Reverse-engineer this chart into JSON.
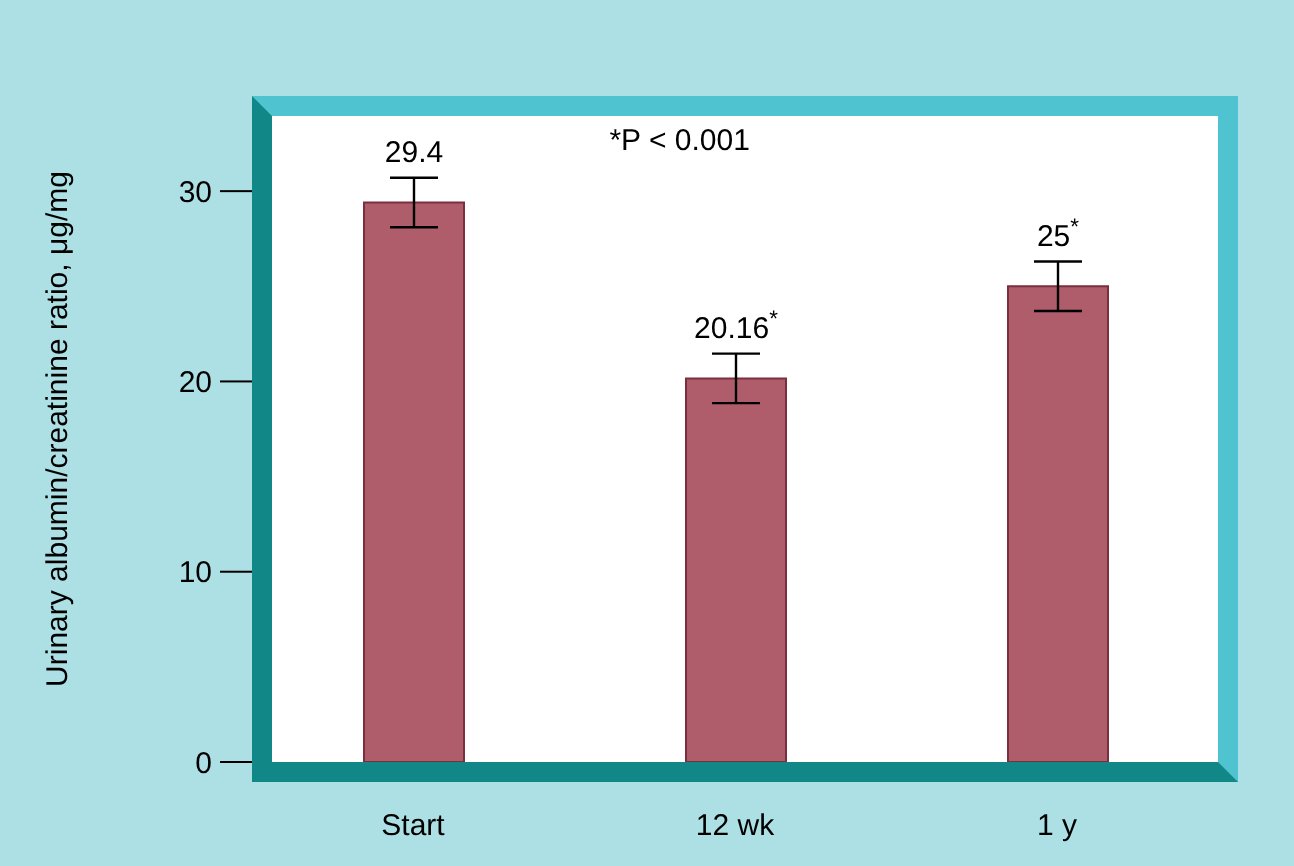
{
  "chart_data": {
    "type": "bar",
    "categories": [
      "Start",
      "12 wk",
      "1 y"
    ],
    "values": [
      29.4,
      20.16,
      25
    ],
    "errors": [
      1.3,
      1.3,
      1.3
    ],
    "color": "#b05d6b",
    "value_labels": [
      "29.4",
      "20.16$^{*}$",
      "25$^{*}$"
    ],
    "ylabel": "Urinary albumin/creatinine ratio, μg/mg",
    "ylim": [
      0,
      35
    ],
    "yticks": [
      0,
      10,
      20,
      30
    ],
    "annotations": [
      "*P < 0.001"
    ],
    "grid": false,
    "legend": false
  }
}
